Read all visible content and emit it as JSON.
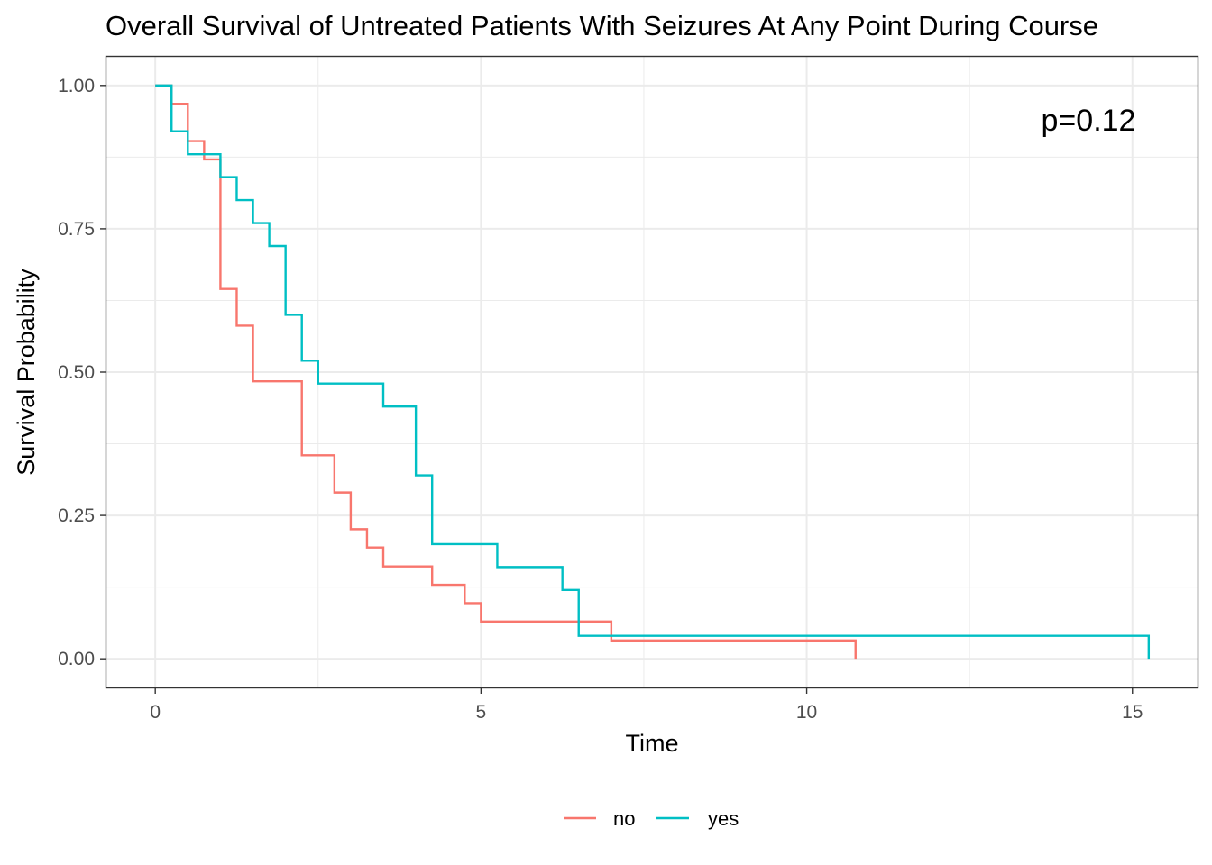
{
  "chart_data": {
    "type": "line",
    "step": true,
    "title": "Overall Survival of Untreated Patients With Seizures At Any Point During Course",
    "xlabel": "Time",
    "ylabel": "Survival Probability",
    "xlim": [
      -0.75,
      16.0
    ],
    "ylim": [
      -0.05,
      1.05
    ],
    "x_ticks": [
      0,
      5,
      10,
      15
    ],
    "x_tick_labels": [
      "0",
      "5",
      "10",
      "15"
    ],
    "x_minor_ticks": [
      2.5,
      7.5,
      12.5
    ],
    "y_ticks": [
      0,
      0.25,
      0.5,
      0.75,
      1.0
    ],
    "y_tick_labels": [
      "0.00",
      "0.25",
      "0.50",
      "0.75",
      "1.00"
    ],
    "y_minor_ticks": [
      0.125,
      0.375,
      0.625,
      0.875
    ],
    "grid": true,
    "legend_position": "bottom",
    "annotation": "p=0.12",
    "series": [
      {
        "name": "no",
        "color": "#F8766D",
        "x": [
          0,
          0.25,
          0.5,
          0.75,
          1.0,
          1.25,
          1.5,
          2.25,
          2.75,
          3.0,
          3.25,
          3.5,
          4.25,
          4.75,
          5.0,
          7.0,
          10.75
        ],
        "y": [
          1.0,
          0.968,
          0.903,
          0.871,
          0.645,
          0.581,
          0.484,
          0.355,
          0.29,
          0.226,
          0.194,
          0.161,
          0.129,
          0.097,
          0.065,
          0.032,
          0.0
        ]
      },
      {
        "name": "yes",
        "color": "#00BFC4",
        "x": [
          0,
          0.25,
          0.5,
          1.0,
          1.25,
          1.5,
          1.75,
          2.0,
          2.25,
          2.5,
          3.5,
          4.0,
          4.25,
          5.25,
          6.25,
          6.5,
          15.25
        ],
        "y": [
          1.0,
          0.92,
          0.88,
          0.84,
          0.8,
          0.76,
          0.72,
          0.6,
          0.52,
          0.48,
          0.44,
          0.32,
          0.2,
          0.16,
          0.12,
          0.04,
          0.0
        ]
      }
    ]
  }
}
